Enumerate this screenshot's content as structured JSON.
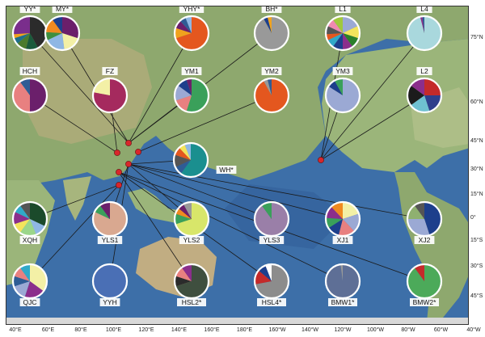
{
  "colors": {
    "ocean": "#3d6fa8",
    "ocean_deep": "#2f5c95",
    "land": "#9bb57a",
    "land_high": "#c9b58a",
    "marker": "#d8262b"
  },
  "latitude_labels": [
    "75°N",
    "60°N",
    "45°N",
    "30°N",
    "15°N",
    "0°",
    "15°S",
    "30°S",
    "45°S"
  ],
  "longitude_labels": [
    "40°E",
    "60°E",
    "80°E",
    "100°E",
    "120°E",
    "140°E",
    "160°E",
    "180°E",
    "160°W",
    "140°W",
    "120°W",
    "100°W",
    "80°W",
    "60°W",
    "40°W"
  ],
  "sites": [
    {
      "label": "YY*",
      "slices": [
        {
          "c": "#2b2b2b",
          "v": 42
        },
        {
          "c": "#1b5a3c",
          "v": 12
        },
        {
          "c": "#4b7a2c",
          "v": 10
        },
        {
          "c": "#1f6f8b",
          "v": 6
        },
        {
          "c": "#f0a21e",
          "v": 4
        },
        {
          "c": "#7a2e8c",
          "v": 26
        }
      ]
    },
    {
      "label": "MY*",
      "slices": [
        {
          "c": "#6b1f6b",
          "v": 30
        },
        {
          "c": "#f3f0a6",
          "v": 18
        },
        {
          "c": "#8fb7e4",
          "v": 20
        },
        {
          "c": "#3f8f3f",
          "v": 8
        },
        {
          "c": "#f08a20",
          "v": 14
        },
        {
          "c": "#1d3f8c",
          "v": 10
        }
      ]
    },
    {
      "label": "YHY*",
      "slices": [
        {
          "c": "#e4571f",
          "v": 70
        },
        {
          "c": "#f0a21e",
          "v": 10
        },
        {
          "c": "#6b1f6b",
          "v": 8
        },
        {
          "c": "#2f5c95",
          "v": 6
        },
        {
          "c": "#8fb7e4",
          "v": 6
        }
      ]
    },
    {
      "label": "BH*",
      "slices": [
        {
          "c": "#999999",
          "v": 92
        },
        {
          "c": "#1d3f8c",
          "v": 4
        },
        {
          "c": "#f0a21e",
          "v": 4
        }
      ]
    },
    {
      "label": "L1",
      "slices": [
        {
          "c": "#9ba9d4",
          "v": 18
        },
        {
          "c": "#f3e45c",
          "v": 12
        },
        {
          "c": "#2b7f2b",
          "v": 10
        },
        {
          "c": "#8b2e8c",
          "v": 10
        },
        {
          "c": "#1d3f8c",
          "v": 10
        },
        {
          "c": "#30a9c9",
          "v": 8
        },
        {
          "c": "#e4571f",
          "v": 6
        },
        {
          "c": "#555555",
          "v": 8
        },
        {
          "c": "#f08ab0",
          "v": 8
        },
        {
          "c": "#a0c83c",
          "v": 10
        }
      ]
    },
    {
      "label": "L4",
      "slices": [
        {
          "c": "#a9d8dd",
          "v": 96
        },
        {
          "c": "#8b2e8c",
          "v": 2
        },
        {
          "c": "#2f5c95",
          "v": 2
        }
      ]
    },
    {
      "label": "HCH",
      "slices": [
        {
          "c": "#6b1f6b",
          "v": 50
        },
        {
          "c": "#e88080",
          "v": 40
        },
        {
          "c": "#2f5c95",
          "v": 10
        }
      ]
    },
    {
      "label": "FZ",
      "slices": [
        {
          "c": "#a52a5e",
          "v": 78
        },
        {
          "c": "#f3f0a6",
          "v": 22
        }
      ]
    },
    {
      "label": "YM1",
      "slices": [
        {
          "c": "#3aa05a",
          "v": 55
        },
        {
          "c": "#e88080",
          "v": 15
        },
        {
          "c": "#9ba9d4",
          "v": 15
        },
        {
          "c": "#1d3f8c",
          "v": 10
        },
        {
          "c": "#6b1f6b",
          "v": 5
        }
      ]
    },
    {
      "label": "YM2",
      "slices": [
        {
          "c": "#e4571f",
          "v": 92
        },
        {
          "c": "#999999",
          "v": 4
        },
        {
          "c": "#2f5c95",
          "v": 4
        }
      ]
    },
    {
      "label": "YM3",
      "slices": [
        {
          "c": "#9ba9d4",
          "v": 84
        },
        {
          "c": "#1d3f8c",
          "v": 8
        },
        {
          "c": "#3aa05a",
          "v": 8
        }
      ]
    },
    {
      "label": "L2",
      "slices": [
        {
          "c": "#c42a2a",
          "v": 25
        },
        {
          "c": "#2f3f8c",
          "v": 20
        },
        {
          "c": "#6fc0d0",
          "v": 20
        },
        {
          "c": "#1b1b1b",
          "v": 20
        },
        {
          "c": "#8b2e8c",
          "v": 15
        }
      ]
    },
    {
      "label": "WH*",
      "slices": [
        {
          "c": "#1a8f8f",
          "v": 60
        },
        {
          "c": "#2f5c95",
          "v": 8
        },
        {
          "c": "#555555",
          "v": 12
        },
        {
          "c": "#e4571f",
          "v": 8
        },
        {
          "c": "#f3e45c",
          "v": 6
        },
        {
          "c": "#8fb7e4",
          "v": 6
        }
      ]
    },
    {
      "label": "XQH",
      "slices": [
        {
          "c": "#1b4a2b",
          "v": 32
        },
        {
          "c": "#8fb7e4",
          "v": 12
        },
        {
          "c": "#9bd68a",
          "v": 16
        },
        {
          "c": "#f3e45c",
          "v": 10
        },
        {
          "c": "#8b2e8c",
          "v": 12
        },
        {
          "c": "#30a9c9",
          "v": 8
        },
        {
          "c": "#555555",
          "v": 10
        }
      ]
    },
    {
      "label": "YLS1",
      "slices": [
        {
          "c": "#d9a890",
          "v": 82
        },
        {
          "c": "#3aa05a",
          "v": 8
        },
        {
          "c": "#6b1f6b",
          "v": 10
        }
      ]
    },
    {
      "label": "YLS2",
      "slices": [
        {
          "c": "#d8e66a",
          "v": 70
        },
        {
          "c": "#3aa05a",
          "v": 10
        },
        {
          "c": "#f08a20",
          "v": 6
        },
        {
          "c": "#6b1f6b",
          "v": 6
        },
        {
          "c": "#999999",
          "v": 8
        }
      ]
    },
    {
      "label": "YLS3",
      "slices": [
        {
          "c": "#9a7fa8",
          "v": 90
        },
        {
          "c": "#3aa05a",
          "v": 10
        }
      ]
    },
    {
      "label": "XJ1",
      "slices": [
        {
          "c": "#f3f0a6",
          "v": 20
        },
        {
          "c": "#9ba9d4",
          "v": 18
        },
        {
          "c": "#e88080",
          "v": 16
        },
        {
          "c": "#1d3f8c",
          "v": 12
        },
        {
          "c": "#3aa05a",
          "v": 10
        },
        {
          "c": "#8b2e8c",
          "v": 12
        },
        {
          "c": "#f08a20",
          "v": 12
        }
      ]
    },
    {
      "label": "XJ2",
      "slices": [
        {
          "c": "#1d3f8c",
          "v": 45
        },
        {
          "c": "#9ba9d4",
          "v": 30
        },
        {
          "c": "#8fb070",
          "v": 15
        },
        {
          "c": "#555555",
          "v": 10
        }
      ]
    },
    {
      "label": "QJC",
      "slices": [
        {
          "c": "#f3f0a6",
          "v": 35
        },
        {
          "c": "#8b2e8c",
          "v": 20
        },
        {
          "c": "#9ba9d4",
          "v": 15
        },
        {
          "c": "#2f5c95",
          "v": 10
        },
        {
          "c": "#e88080",
          "v": 10
        },
        {
          "c": "#30a9c9",
          "v": 10
        }
      ]
    },
    {
      "label": "YYH",
      "slices": [
        {
          "c": "#4a6fb5",
          "v": 100
        }
      ]
    },
    {
      "label": "HSL2*",
      "slices": [
        {
          "c": "#3f4f3f",
          "v": 70
        },
        {
          "c": "#2b2b2b",
          "v": 10
        },
        {
          "c": "#e88080",
          "v": 10
        },
        {
          "c": "#8b2e8c",
          "v": 10
        }
      ]
    },
    {
      "label": "HSL4*",
      "slices": [
        {
          "c": "#8c8c8c",
          "v": 72
        },
        {
          "c": "#c42a2a",
          "v": 14
        },
        {
          "c": "#1d3f8c",
          "v": 8
        },
        {
          "c": "#ffffff",
          "v": 6
        }
      ]
    },
    {
      "label": "BMW1*",
      "slices": [
        {
          "c": "#5e6f96",
          "v": 98
        },
        {
          "c": "#999999",
          "v": 2
        }
      ]
    },
    {
      "label": "BMW2*",
      "slices": [
        {
          "c": "#4caa5a",
          "v": 90
        },
        {
          "c": "#c42a2a",
          "v": 10
        }
      ]
    }
  ]
}
